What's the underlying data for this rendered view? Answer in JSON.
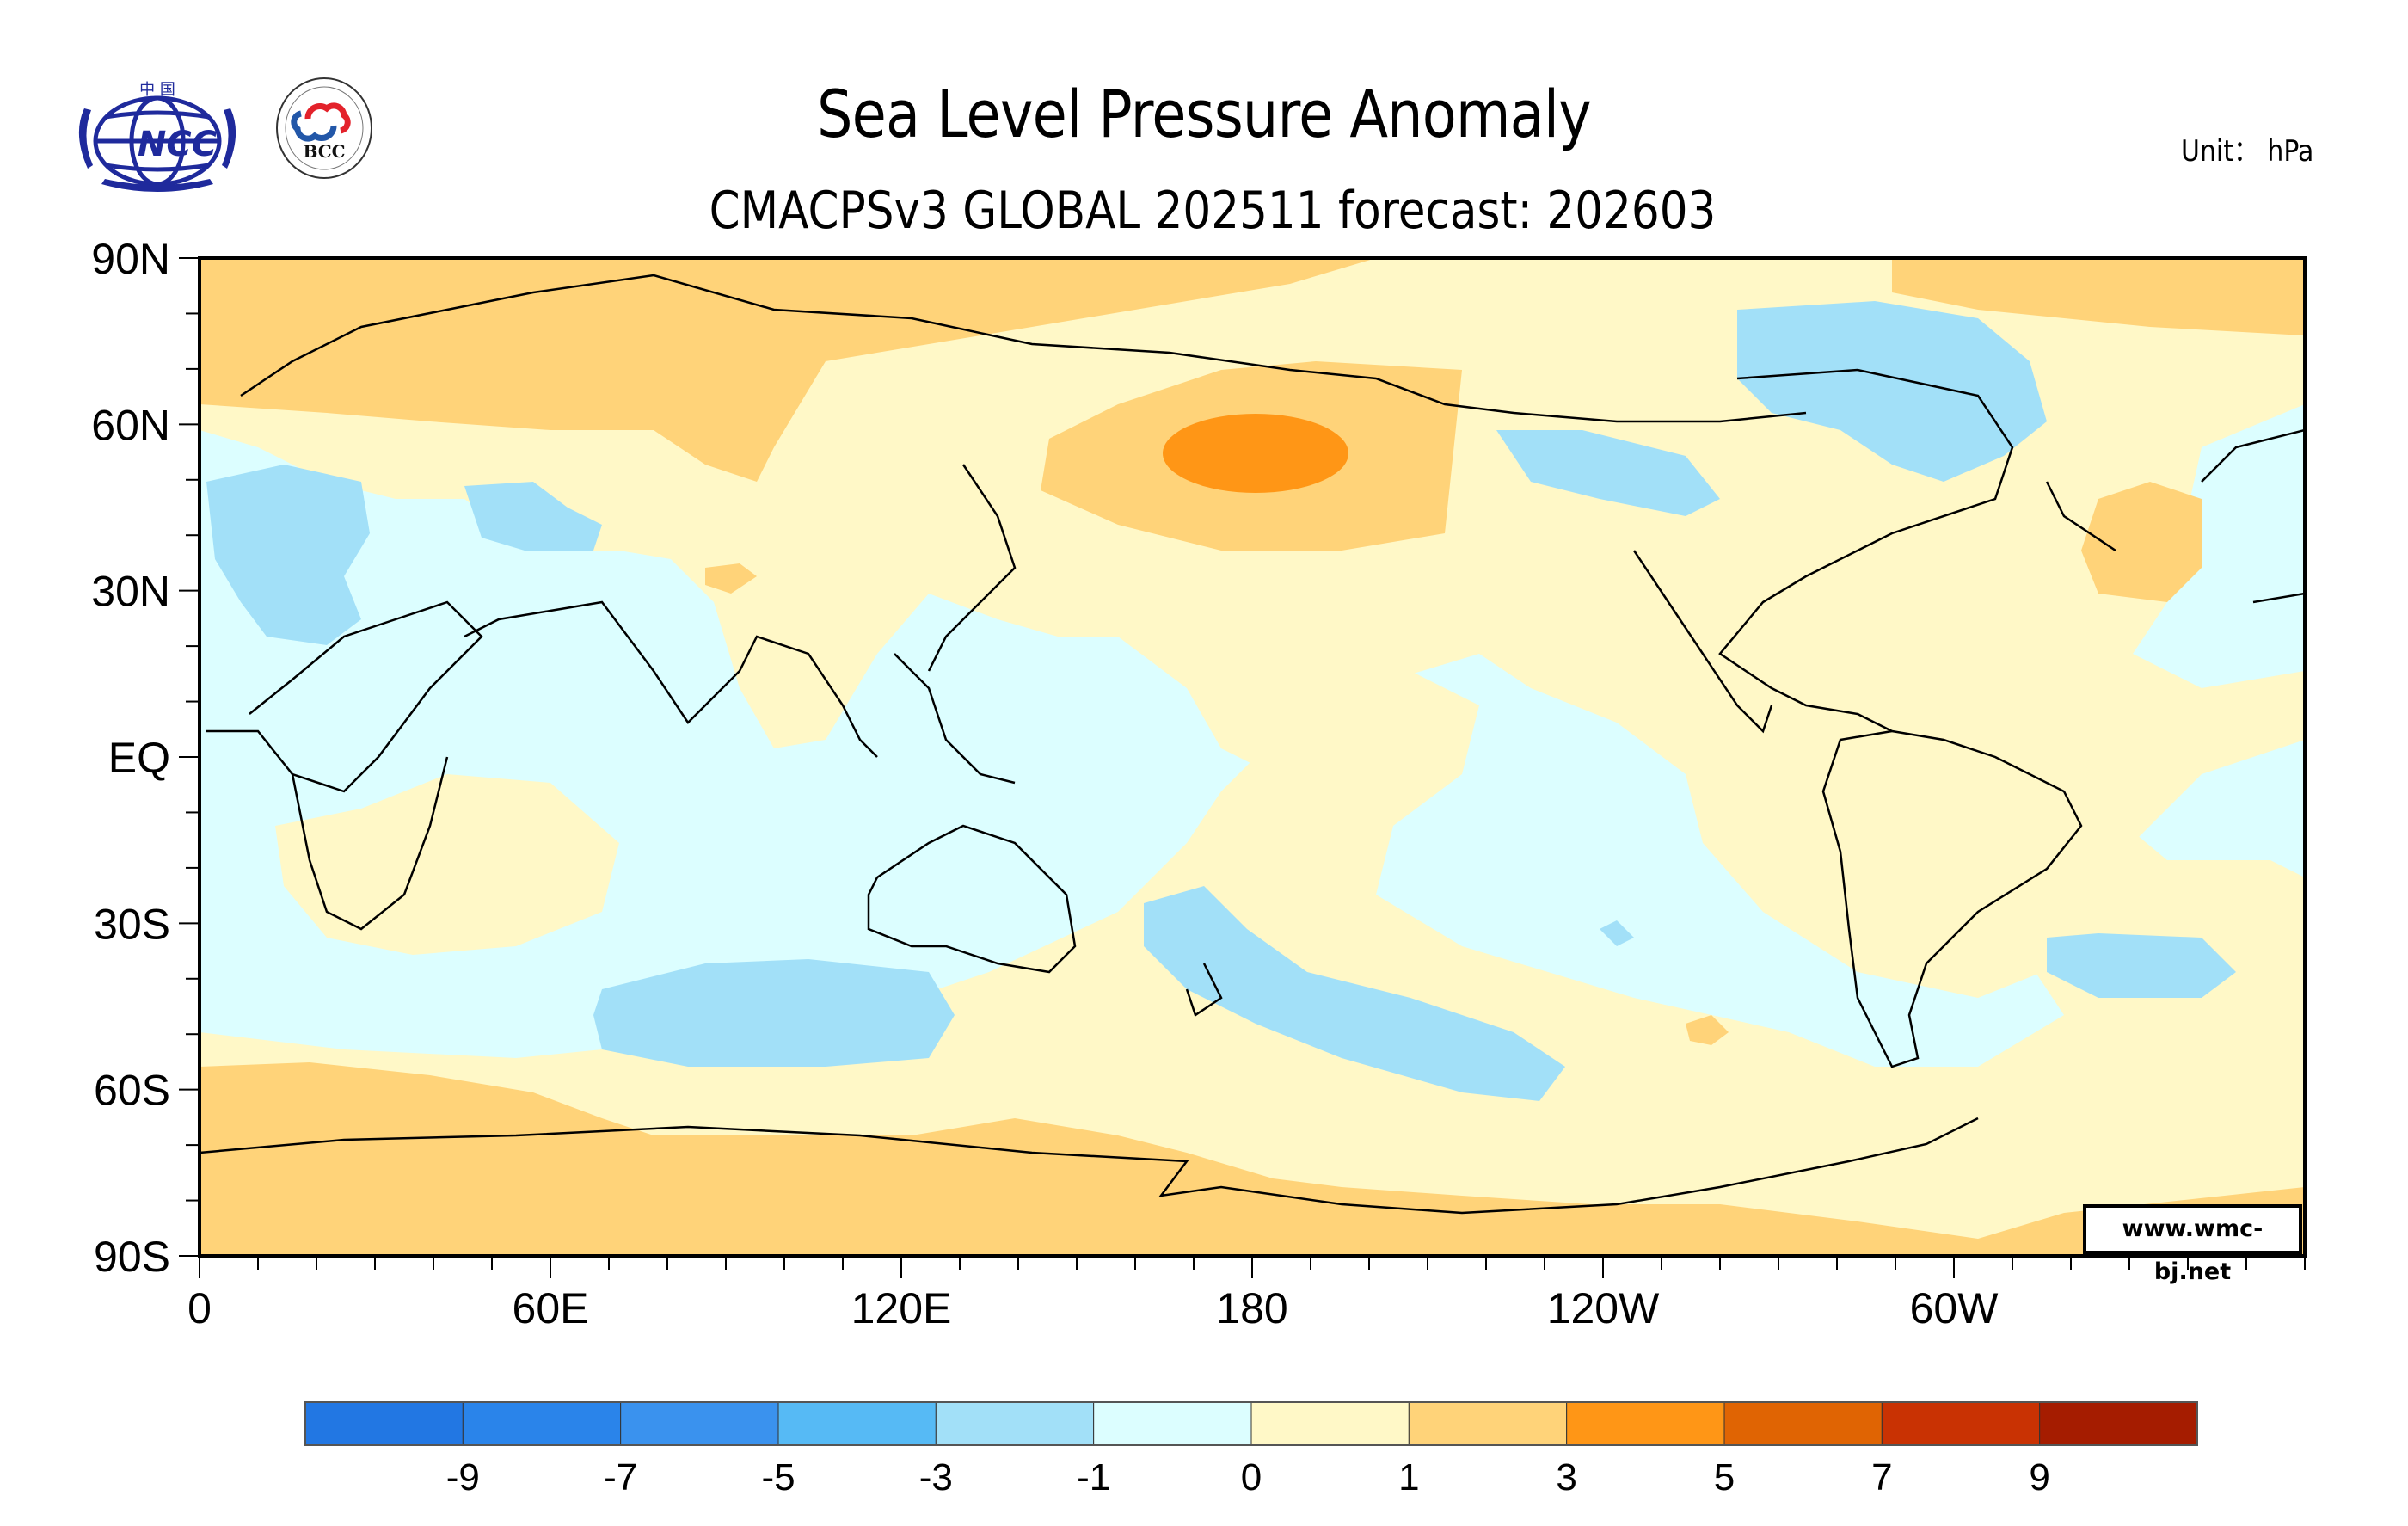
{
  "header": {
    "title": "Sea Level Pressure Anomaly",
    "subtitle": "CMACPSv3 GLOBAL 202511 forecast: 202603",
    "unit": "Unit： hPa"
  },
  "logos": [
    {
      "name": "ncc-logo",
      "text": "NCC",
      "top_text": "中 国",
      "color": "#1f2a9c"
    },
    {
      "name": "bcc-logo",
      "text": "BCC",
      "ring_text": "BEIJING CLIMATE CENTER",
      "colors": [
        "#e3222b",
        "#2257a8"
      ]
    }
  ],
  "credit": "www.wmc-bj.net",
  "chart_data": {
    "type": "heatmap",
    "title": "Sea Level Pressure Anomaly",
    "subtitle": "CMACPSv3 GLOBAL 202511 forecast: 202603",
    "variable": "Sea level pressure anomaly",
    "units": "hPa",
    "projection": "cylindrical equidistant, centered on 180",
    "lon_range": [
      0,
      360
    ],
    "lat_range": [
      -90,
      90
    ],
    "x_ticks": [
      "0",
      "60E",
      "120E",
      "180",
      "120W",
      "60W"
    ],
    "y_ticks": [
      "90N",
      "60N",
      "30N",
      "EQ",
      "30S",
      "60S",
      "90S"
    ],
    "colorbar": {
      "levels": [
        "-9",
        "-7",
        "-5",
        "-3",
        "-1",
        "0",
        "1",
        "3",
        "5",
        "7",
        "9"
      ],
      "colors": [
        "#2277e3",
        "#2a84ea",
        "#3a92ee",
        "#56baf5",
        "#a2e0f8",
        "#dcfeff",
        "#fff8c7",
        "#ffd379",
        "#ff9616",
        "#e06403",
        "#c93203",
        "#a51c00"
      ]
    },
    "features": [
      {
        "region": "Bering Sea / Aleutians",
        "anomaly_range": "3 to 5",
        "sign": "positive"
      },
      {
        "region": "North Pacific",
        "anomaly_range": "1 to 3",
        "sign": "positive"
      },
      {
        "region": "Arctic / Northern Eurasia",
        "anomaly_range": "1 to 3",
        "sign": "positive"
      },
      {
        "region": "Canada / Labrador",
        "anomaly_range": "-3 to -1",
        "sign": "negative"
      },
      {
        "region": "Mediterranean / Central Asia",
        "anomaly_range": "-3 to -1",
        "sign": "negative"
      },
      {
        "region": "Southern Indian Ocean",
        "anomaly_range": "-3 to -1",
        "sign": "negative"
      },
      {
        "region": "Southwest Pacific near New Zealand",
        "anomaly_range": "-3 to -1",
        "sign": "negative"
      },
      {
        "region": "South Atlantic",
        "anomaly_range": "-3 to -1",
        "sign": "negative"
      },
      {
        "region": "North Atlantic (Azores)",
        "anomaly_range": "1 to 3",
        "sign": "positive"
      },
      {
        "region": "Antarctica",
        "anomaly_range": "1 to 3",
        "sign": "positive"
      }
    ]
  }
}
